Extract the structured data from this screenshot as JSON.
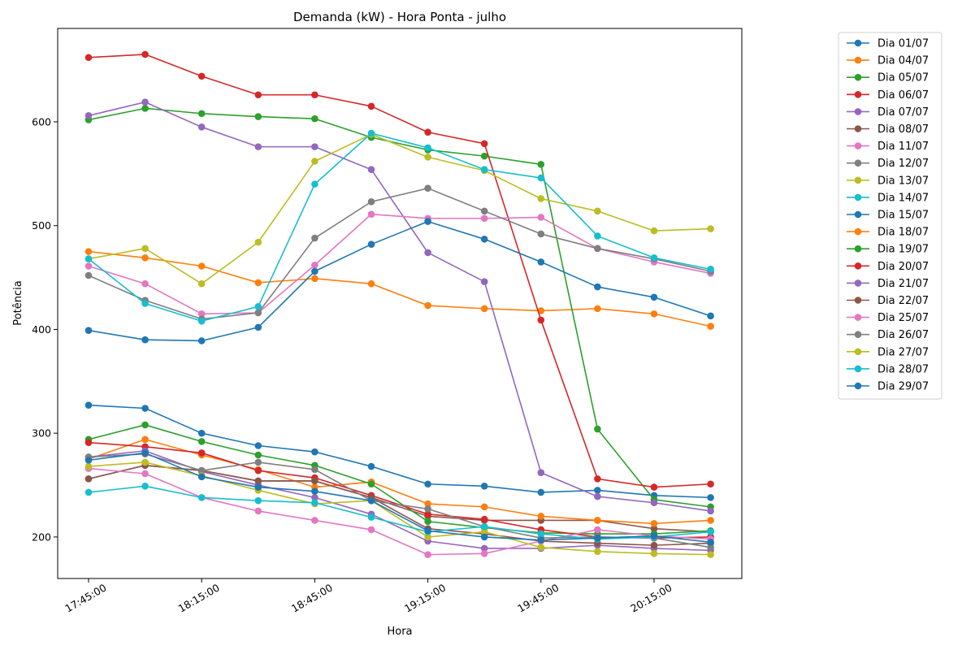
{
  "chart_data": {
    "type": "line",
    "title": "Demanda (kW) - Hora Ponta - julho",
    "xlabel": "Hora",
    "ylabel": "Potência",
    "x": [
      "17:45:00",
      "18:00:00",
      "18:15:00",
      "18:30:00",
      "18:45:00",
      "19:00:00",
      "19:15:00",
      "19:30:00",
      "19:45:00",
      "20:00:00",
      "20:15:00",
      "20:30:00"
    ],
    "xtick_labels": [
      "17:45:00",
      "18:15:00",
      "18:45:00",
      "19:15:00",
      "19:45:00",
      "20:15:00"
    ],
    "yticks": [
      200,
      300,
      400,
      500,
      600
    ],
    "ylim": [
      160,
      690
    ],
    "grid": false,
    "legend_position": "outside-right",
    "series": [
      {
        "name": "Dia 01/07",
        "color": "#1f77b4",
        "values": [
          327,
          324,
          300,
          288,
          282,
          268,
          251,
          249,
          243,
          245,
          240,
          238
        ]
      },
      {
        "name": "Dia 04/07",
        "color": "#ff7f0e",
        "values": [
          475,
          469,
          461,
          445,
          449,
          444,
          423,
          420,
          418,
          420,
          415,
          403
        ]
      },
      {
        "name": "Dia 05/07",
        "color": "#2ca02c",
        "values": [
          602,
          613,
          608,
          605,
          603,
          585,
          573,
          567,
          559,
          304,
          236,
          229
        ]
      },
      {
        "name": "Dia 06/07",
        "color": "#d62728",
        "values": [
          662,
          665,
          644,
          626,
          626,
          615,
          590,
          579,
          409,
          256,
          248,
          251
        ]
      },
      {
        "name": "Dia 07/07",
        "color": "#9467bd",
        "values": [
          606,
          619,
          595,
          576,
          576,
          554,
          474,
          446,
          262,
          239,
          233,
          225
        ]
      },
      {
        "name": "Dia 08/07",
        "color": "#8c564b",
        "values": [
          256,
          269,
          264,
          254,
          254,
          238,
          220,
          216,
          216,
          216,
          208,
          205
        ]
      },
      {
        "name": "Dia 11/07",
        "color": "#e377c2",
        "values": [
          461,
          444,
          415,
          416,
          462,
          511,
          507,
          507,
          508,
          478,
          465,
          454
        ]
      },
      {
        "name": "Dia 12/07",
        "color": "#7f7f7f",
        "values": [
          452,
          428,
          410,
          416,
          488,
          523,
          536,
          514,
          492,
          478,
          468,
          456
        ]
      },
      {
        "name": "Dia 13/07",
        "color": "#bcbd22",
        "values": [
          468,
          478,
          444,
          484,
          562,
          588,
          566,
          553,
          526,
          514,
          495,
          497
        ]
      },
      {
        "name": "Dia 14/07",
        "color": "#17becf",
        "values": [
          468,
          425,
          408,
          422,
          540,
          589,
          575,
          554,
          546,
          490,
          469,
          458
        ]
      },
      {
        "name": "Dia 15/07",
        "color": "#1f77b4",
        "values": [
          399,
          390,
          389,
          402,
          456,
          482,
          504,
          487,
          465,
          441,
          431,
          413
        ]
      },
      {
        "name": "Dia 18/07",
        "color": "#ff7f0e",
        "values": [
          275,
          294,
          279,
          265,
          248,
          253,
          232,
          229,
          220,
          216,
          213,
          216
        ]
      },
      {
        "name": "Dia 19/07",
        "color": "#2ca02c",
        "values": [
          294,
          308,
          292,
          279,
          269,
          251,
          215,
          209,
          204,
          203,
          203,
          206
        ]
      },
      {
        "name": "Dia 20/07",
        "color": "#d62728",
        "values": [
          291,
          287,
          281,
          264,
          257,
          240,
          222,
          217,
          207,
          200,
          199,
          200
        ]
      },
      {
        "name": "Dia 21/07",
        "color": "#9467bd",
        "values": [
          277,
          283,
          263,
          250,
          238,
          222,
          196,
          189,
          189,
          192,
          189,
          187
        ]
      },
      {
        "name": "Dia 22/07",
        "color": "#8c564b",
        "values": [
          256,
          269,
          264,
          254,
          254,
          238,
          208,
          203,
          196,
          194,
          192,
          194
        ]
      },
      {
        "name": "Dia 25/07",
        "color": "#e377c2",
        "values": [
          266,
          261,
          238,
          225,
          216,
          207,
          183,
          184,
          196,
          207,
          201,
          198
        ]
      },
      {
        "name": "Dia 26/07",
        "color": "#7f7f7f",
        "values": [
          277,
          280,
          264,
          272,
          265,
          235,
          227,
          210,
          199,
          200,
          199,
          190
        ]
      },
      {
        "name": "Dia 27/07",
        "color": "#bcbd22",
        "values": [
          268,
          272,
          259,
          245,
          232,
          235,
          200,
          205,
          190,
          186,
          184,
          183
        ]
      },
      {
        "name": "Dia 28/07",
        "color": "#17becf",
        "values": [
          243,
          249,
          238,
          235,
          233,
          219,
          205,
          210,
          203,
          198,
          200,
          205
        ]
      },
      {
        "name": "Dia 29/07",
        "color": "#1f77b4",
        "values": [
          274,
          281,
          258,
          248,
          244,
          235,
          206,
          200,
          197,
          199,
          201,
          195
        ]
      }
    ]
  }
}
